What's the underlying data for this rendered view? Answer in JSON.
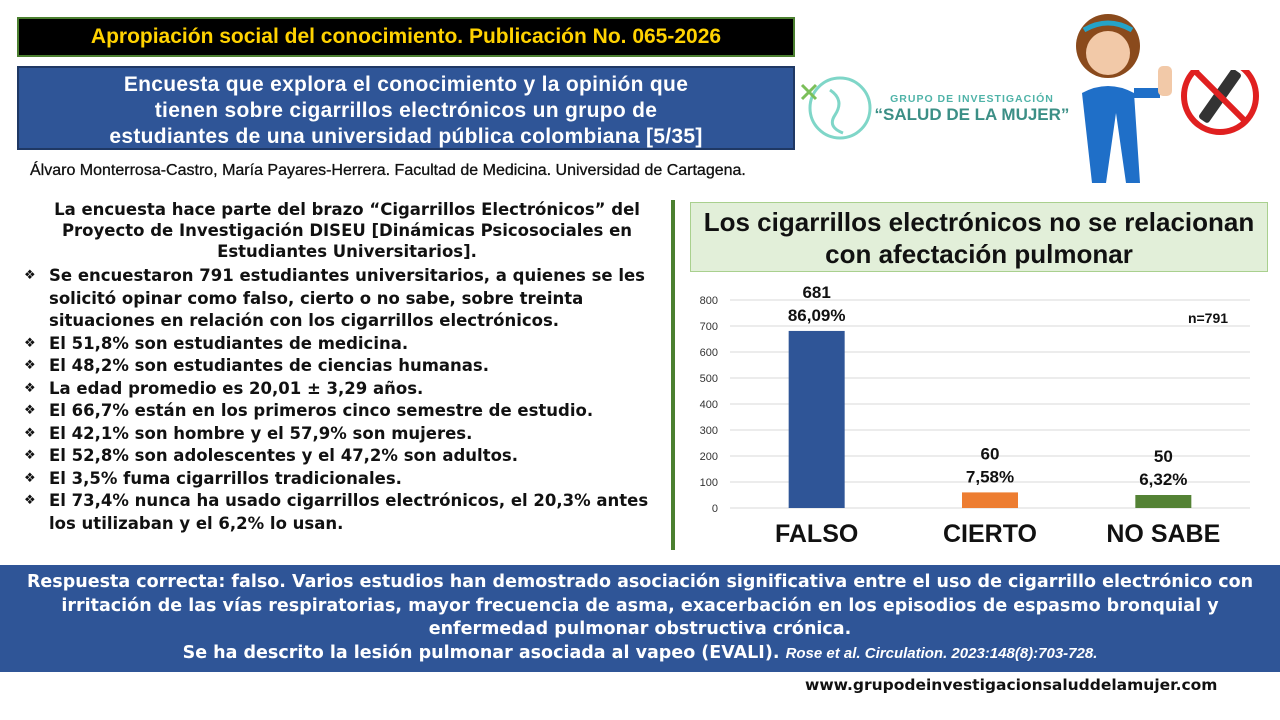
{
  "header": {
    "title": "Apropiación social del conocimiento. Publicación No. 065-2026",
    "subtitle": "Encuesta que explora el conocimiento y la opinión que tienen sobre cigarrillos electrónicos un grupo de estudiantes de una universidad pública colombiana [5/35]",
    "authors": "Álvaro Monterrosa-Castro, María Payares-Herrera. Facultad de Medicina. Universidad de Cartagena.",
    "logo_top": "GRUPO DE INVESTIGACIÓN",
    "logo_name": "“SALUD DE LA MUJER”"
  },
  "intro": "La encuesta hace parte del brazo “Cigarrillos Electrónicos” del Proyecto de Investigación DISEU [Dinámicas Psicosociales en Estudiantes Universitarios].",
  "bullets": [
    "Se encuestaron 791 estudiantes universitarios, a quienes se les solicitó opinar como falso, cierto o no sabe, sobre treinta situaciones en relación con los cigarrillos electrónicos.",
    "El 51,8% son estudiantes de medicina.",
    "El 48,2% son estudiantes de ciencias humanas.",
    "La edad promedio es 20,01 ± 3,29 años.",
    "El 66,7% están en los primeros cinco semestre de estudio.",
    "El 42,1% son hombre y el 57,9% son mujeres.",
    "El 52,8% son adolescentes y el 47,2% son adultos.",
    "El 3,5% fuma cigarrillos tradicionales.",
    "El 73,4% nunca ha usado cigarrillos electrónicos, el 20,3% antes los utilizaban y el 6,2% lo usan."
  ],
  "chart_data": {
    "type": "bar",
    "title": "Los cigarrillos electrónicos no se relacionan con afectación pulmonar",
    "categories": [
      "FALSO",
      "CIERTO",
      "NO SABE"
    ],
    "values": [
      681,
      60,
      50
    ],
    "percent_labels": [
      "86,09%",
      "7,58%",
      "6,32%"
    ],
    "colors": [
      "#2f5597",
      "#ed7d31",
      "#548235"
    ],
    "annotation": "n=791",
    "ylim": [
      0,
      800
    ],
    "yticks": [
      0,
      100,
      200,
      300,
      400,
      500,
      600,
      700,
      800
    ],
    "grid": true
  },
  "footer": {
    "answer": "Respuesta correcta: falso. Varios estudios han demostrado asociación significativa entre el uso de cigarrillo electrónico con irritación de las vías respiratorias, mayor frecuencia de asma, exacerbación en los episodios de espasmo bronquial y enfermedad pulmonar obstructiva crónica.",
    "evali": "Se ha descrito la lesión pulmonar asociada al vapeo (EVALI).",
    "citation": "Rose et al. Circulation. 2023:148(8):703-728.",
    "url": "www.grupodeinvestigacionsaluddelamujer.com"
  }
}
